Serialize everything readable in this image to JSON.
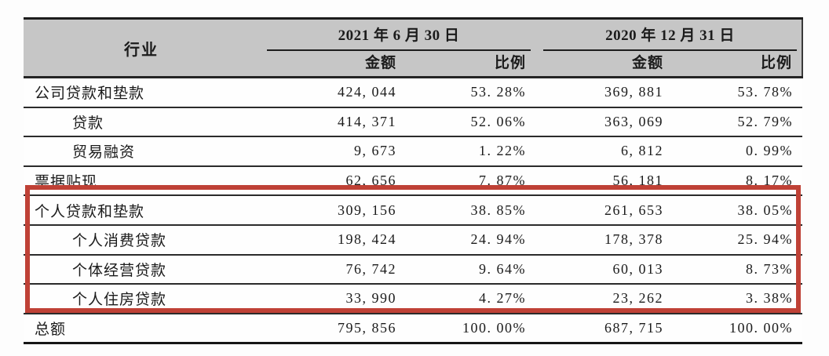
{
  "table": {
    "industry_header": "行业",
    "period1": {
      "date": "2021 年 6 月 30 日",
      "amount_label": "金额",
      "ratio_label": "比例"
    },
    "period2": {
      "date": "2020 年 12 月 31 日",
      "amount_label": "金额",
      "ratio_label": "比例"
    },
    "rows": [
      {
        "industry": "公司贷款和垫款",
        "indent": false,
        "highlighted": false,
        "amount_2021": "424, 044",
        "ratio_2021": "53. 28%",
        "amount_2020": "369, 881",
        "ratio_2020": "53. 78%"
      },
      {
        "industry": "贷款",
        "indent": true,
        "highlighted": false,
        "amount_2021": "414, 371",
        "ratio_2021": "52. 06%",
        "amount_2020": "363, 069",
        "ratio_2020": "52. 79%"
      },
      {
        "industry": "贸易融资",
        "indent": true,
        "highlighted": false,
        "amount_2021": "9, 673",
        "ratio_2021": "1. 22%",
        "amount_2020": "6, 812",
        "ratio_2020": "0. 99%"
      },
      {
        "industry": "票据贴现",
        "indent": false,
        "highlighted": false,
        "amount_2021": "62, 656",
        "ratio_2021": "7. 87%",
        "amount_2020": "56, 181",
        "ratio_2020": "8. 17%"
      },
      {
        "industry": "个人贷款和垫款",
        "indent": false,
        "highlighted": true,
        "amount_2021": "309, 156",
        "ratio_2021": "38. 85%",
        "amount_2020": "261, 653",
        "ratio_2020": "38. 05%"
      },
      {
        "industry": "个人消费贷款",
        "indent": true,
        "highlighted": true,
        "amount_2021": "198, 424",
        "ratio_2021": "24. 94%",
        "amount_2020": "178, 378",
        "ratio_2020": "25. 94%"
      },
      {
        "industry": "个体经营贷款",
        "indent": true,
        "highlighted": true,
        "amount_2021": "76, 742",
        "ratio_2021": "9. 64%",
        "amount_2020": "60, 013",
        "ratio_2020": "8. 73%"
      },
      {
        "industry": "个人住房贷款",
        "indent": true,
        "highlighted": true,
        "amount_2021": "33, 990",
        "ratio_2021": "4. 27%",
        "amount_2020": "23, 262",
        "ratio_2020": "3. 38%"
      },
      {
        "industry": "总额",
        "indent": false,
        "highlighted": false,
        "amount_2021": "795, 856",
        "ratio_2021": "100. 00%",
        "amount_2020": "687, 715",
        "ratio_2020": "100. 00%"
      }
    ]
  },
  "colors": {
    "header_bg": "#c6c6c6",
    "grid_line": "#2b2b2b",
    "text": "#1b1b1b",
    "highlight_border": "#bf4136",
    "page_bg": "#fdfdfd"
  }
}
